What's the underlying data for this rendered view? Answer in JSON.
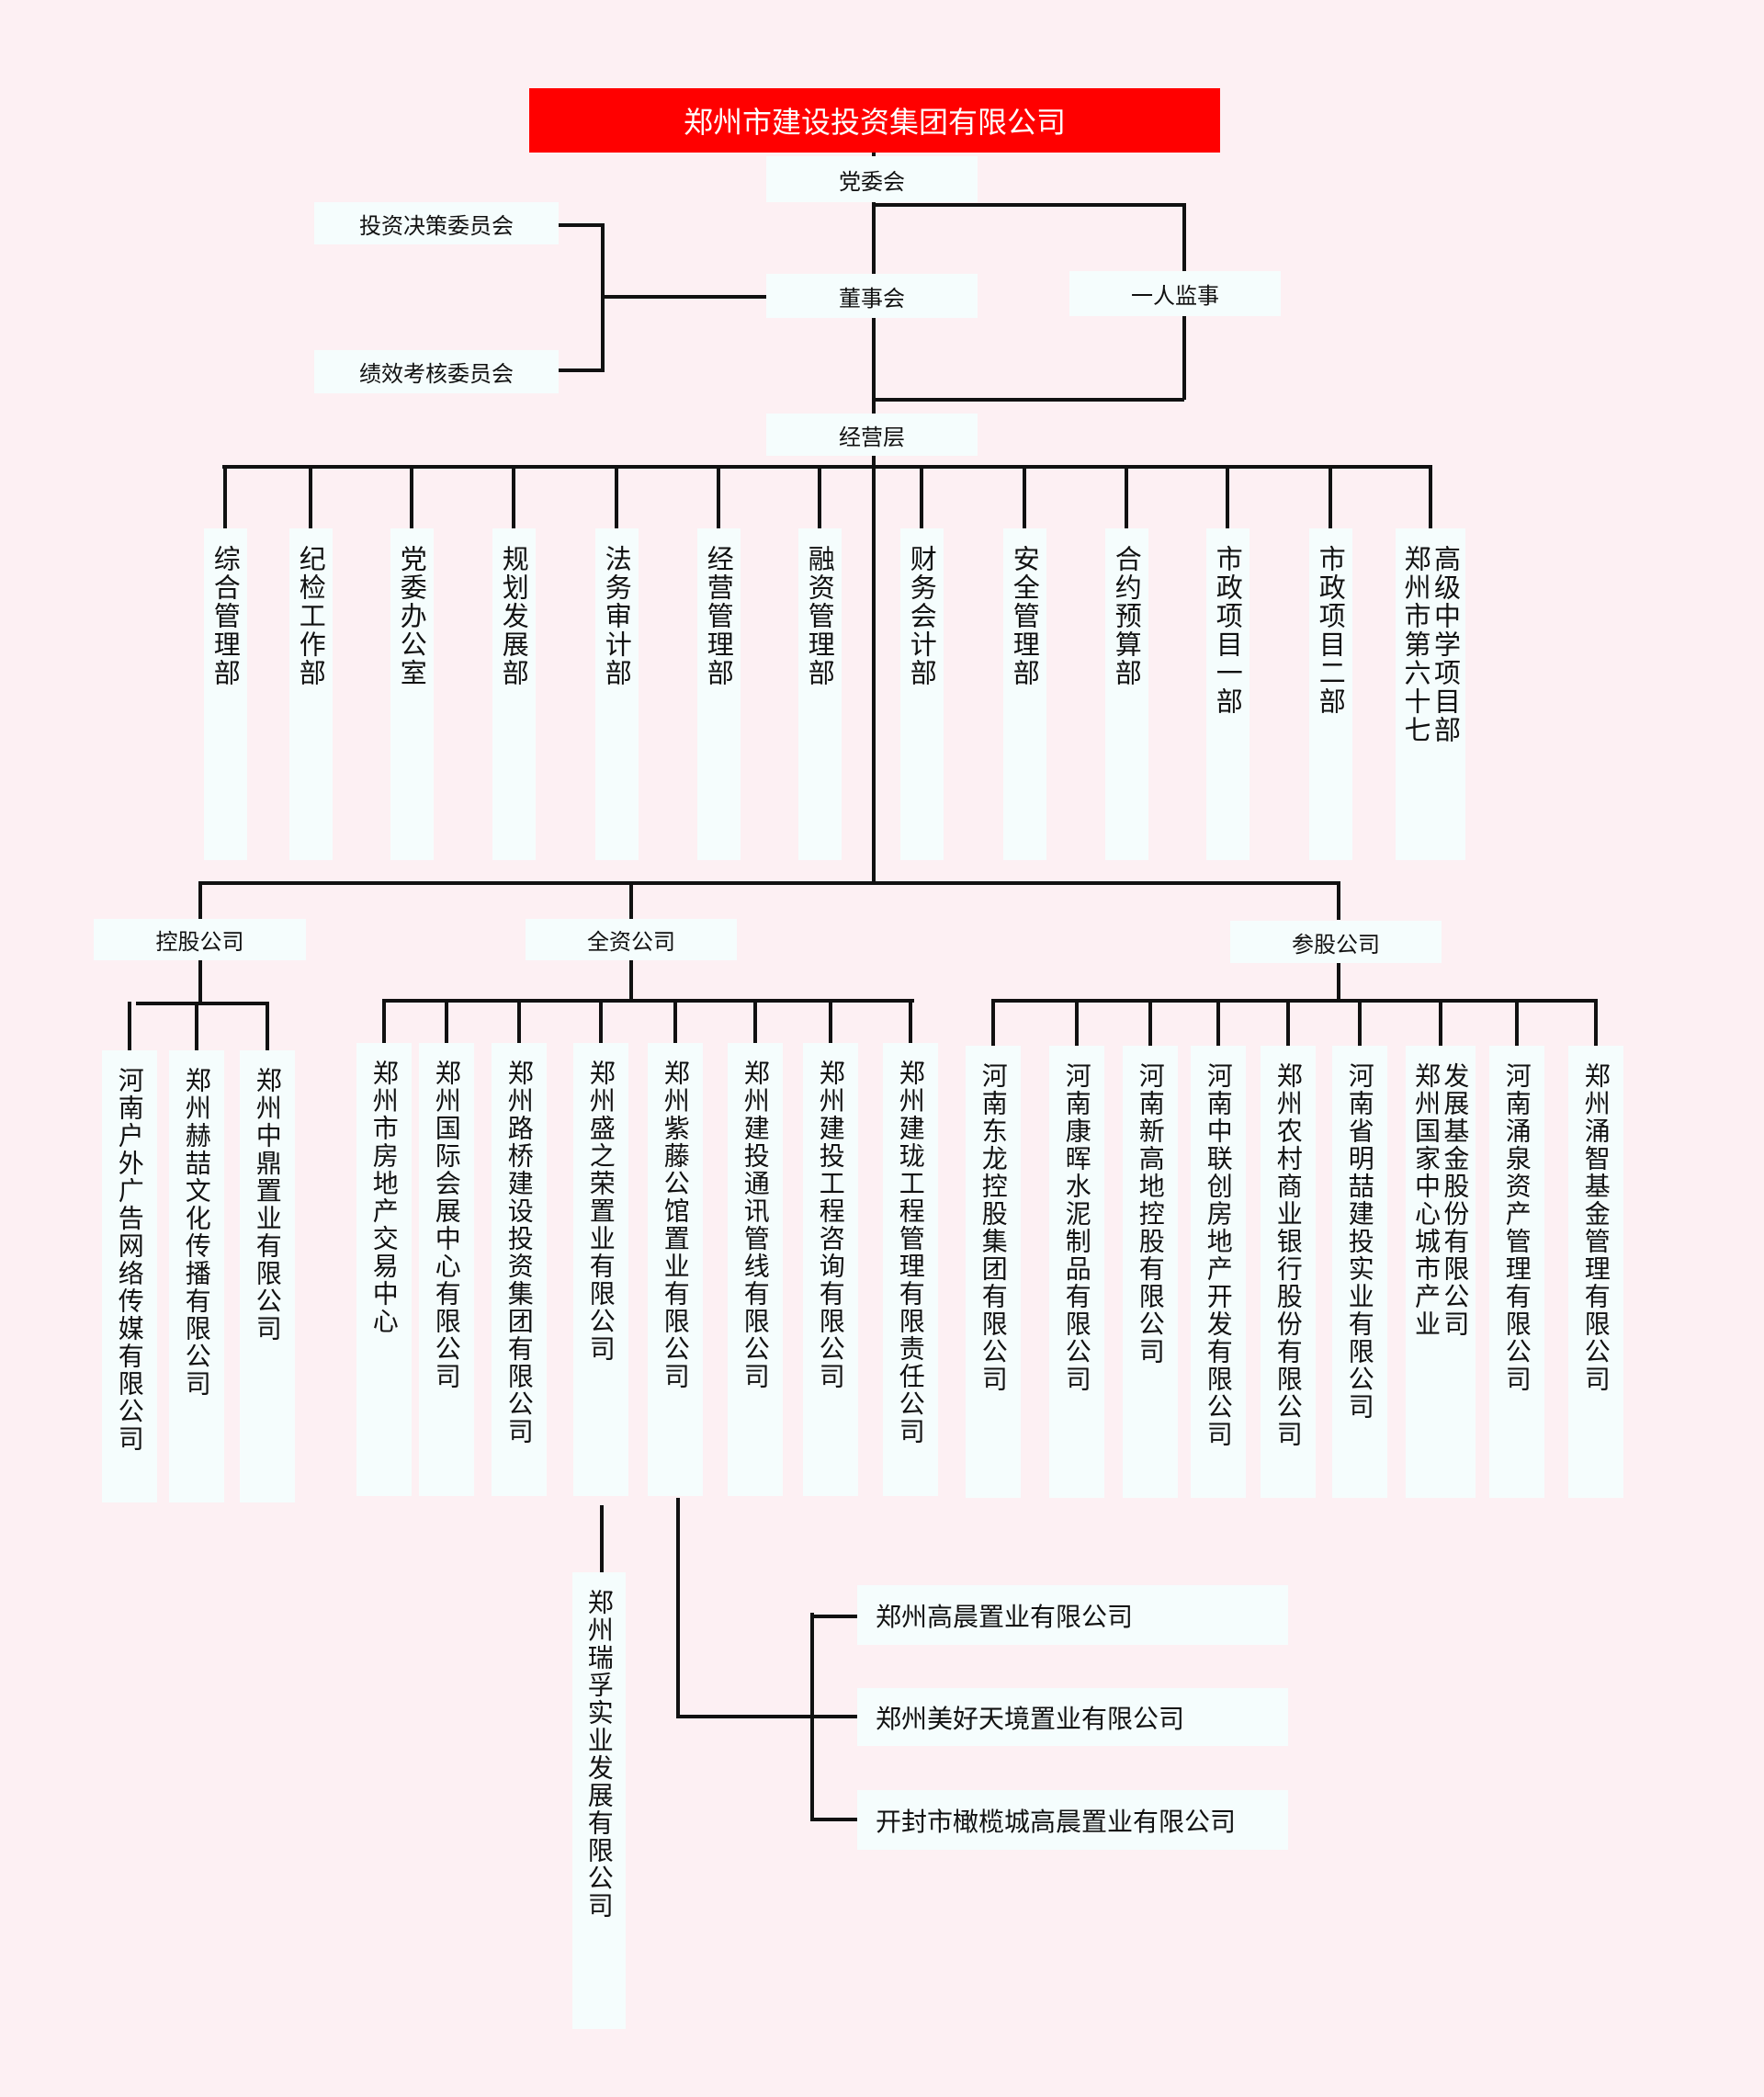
{
  "root": {
    "label": "郑州市建设投资集团有限公司",
    "color": "#ff0000"
  },
  "party_committee": "党委会",
  "investment_committee": "投资决策委员会",
  "performance_committee": "绩效考核委员会",
  "board": "董事会",
  "supervisor": "一人监事",
  "management": "经营层",
  "departments": [
    {
      "lines": [
        "综合管理部"
      ]
    },
    {
      "lines": [
        "纪检工作部"
      ]
    },
    {
      "lines": [
        "党委办公室"
      ]
    },
    {
      "lines": [
        "规划发展部"
      ]
    },
    {
      "lines": [
        "法务审计部"
      ]
    },
    {
      "lines": [
        "经营管理部"
      ]
    },
    {
      "lines": [
        "融资管理部"
      ]
    },
    {
      "lines": [
        "财务会计部"
      ]
    },
    {
      "lines": [
        "安全管理部"
      ]
    },
    {
      "lines": [
        "合约预算部"
      ]
    },
    {
      "lines": [
        "市政项目一部"
      ]
    },
    {
      "lines": [
        "市政项目二部"
      ]
    },
    {
      "lines": [
        "郑州市第六十七",
        "高级中学项目部"
      ]
    }
  ],
  "groups": {
    "holding": {
      "label": "控股公司",
      "companies": [
        {
          "lines": [
            "河南户外广告网络传媒有限公司"
          ]
        },
        {
          "lines": [
            "郑州赫喆文化传播有限公司"
          ]
        },
        {
          "lines": [
            "郑州中鼎置业有限公司"
          ]
        }
      ]
    },
    "wholly_owned": {
      "label": "全资公司",
      "companies": [
        {
          "lines": [
            "郑州市房地产交易中心"
          ]
        },
        {
          "lines": [
            "郑州国际会展中心有限公司"
          ]
        },
        {
          "lines": [
            "郑州路桥建设投资集团有限公司"
          ]
        },
        {
          "lines": [
            "郑州盛之荣置业有限公司"
          ]
        },
        {
          "lines": [
            "郑州紫藤公馆置业有限公司"
          ]
        },
        {
          "lines": [
            "郑州建投通讯管线有限公司"
          ]
        },
        {
          "lines": [
            "郑州建投工程咨询有限公司"
          ]
        },
        {
          "lines": [
            "郑州建珑工程管理有限责任公司"
          ]
        }
      ]
    },
    "participating": {
      "label": "参股公司",
      "companies": [
        {
          "lines": [
            "河南东龙控股集团有限公司"
          ]
        },
        {
          "lines": [
            "河南康晖水泥制品有限公司"
          ]
        },
        {
          "lines": [
            "河南新高地控股有限公司"
          ]
        },
        {
          "lines": [
            "河南中联创房地产开发有限公司"
          ]
        },
        {
          "lines": [
            "郑州农村商业银行股份有限公司"
          ]
        },
        {
          "lines": [
            "河南省明喆建投实业有限公司"
          ]
        },
        {
          "lines": [
            "郑州国家中心城市产业",
            "发展基金股份有限公司"
          ]
        },
        {
          "lines": [
            "河南涌泉资产管理有限公司"
          ]
        },
        {
          "lines": [
            "郑州涌智基金管理有限公司"
          ]
        }
      ]
    }
  },
  "shengzhirong_sub": {
    "lines": [
      "郑州瑞孚实业发展有限公司"
    ]
  },
  "zitengs_subs": [
    "郑州高晨置业有限公司",
    "郑州美好天境置业有限公司",
    "开封市橄榄城高晨置业有限公司"
  ]
}
